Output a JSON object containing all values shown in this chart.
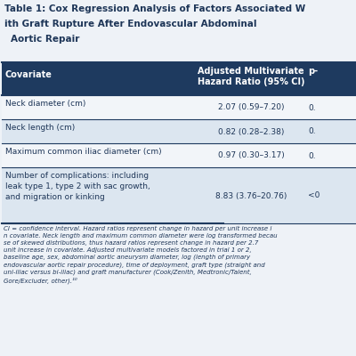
{
  "title_line1": "Table 1: Cox Regression Analysis of Factors Associated W",
  "title_line2": "Graft Rupture After Endovascular Abdominal",
  "title_line3": "  Repair",
  "title_color": "#1d3557",
  "header_bg": "#1e3a5f",
  "header_text_color": "#ffffff",
  "header_col1": "Covariate",
  "header_col2": "Adjusted Multivariate\nHazard Ratio (95% CI)",
  "header_col3": "p-",
  "row_alt_color": "#dce6f0",
  "row_plain_color": "#f2f5f9",
  "separator_color": "#1e3a5f",
  "body_text_color": "#1d3557",
  "footnote_text_color": "#1d3557",
  "bg_color": "#eef2f7",
  "rows": [
    {
      "col1": "Neck diameter (cm)",
      "col2": "2.07 (0.59–7.20)",
      "col3": "0.",
      "multiline": 1
    },
    {
      "col1": "Neck length (cm)",
      "col2": "0.82 (0.28–2.38)",
      "col3": "0.",
      "multiline": 1
    },
    {
      "col1": "Maximum common iliac diameter (cm)",
      "col2": "0.97 (0.30–3.17)",
      "col3": "0.",
      "multiline": 1
    },
    {
      "col1": "Number of complications: including\nleak type 1, type 2 with sac growth,\nand migration or kinking",
      "col2": "8.83 (3.76–20.76)",
      "col3": "<0",
      "multiline": 3
    }
  ],
  "footnote": "CI = confidence interval. Hazard ratios represent change in hazard per unit increase i\nn covariate. Neck length and maximum common diameter were log transformed becau\nse of skewed distributions, thus hazard ratios represent change in hazard per 2.7 unit increase in cov\nariate. Adjusted multivariate models factored in trial 1 or 2, baseline age, sex, abdominal aortic a\nneurysm diameter, log (length of primary endovascular aortic repair procedure), time of deplo\nyment, graft type (straight and uni-iliac versus bi-iliac) and graft manufacturer (Cook/Zenith\n, Medtronic/Talent, Gore/Excluder, other).¹⁰"
}
